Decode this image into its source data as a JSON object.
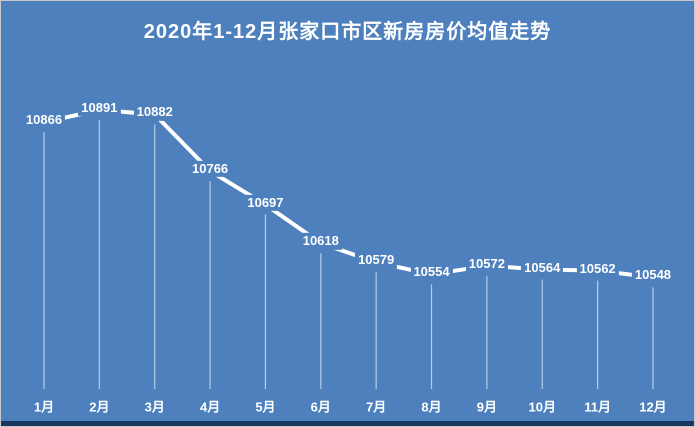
{
  "chart_data": {
    "type": "line",
    "title": "2020年1-12月张家口市区新房房价均值走势",
    "categories": [
      "1月",
      "2月",
      "3月",
      "4月",
      "5月",
      "6月",
      "7月",
      "8月",
      "9月",
      "10月",
      "11月",
      "12月"
    ],
    "values": [
      10866,
      10891,
      10882,
      10766,
      10697,
      10618,
      10579,
      10554,
      10572,
      10564,
      10562,
      10548
    ],
    "xlabel": "",
    "ylabel": "",
    "legend": "none",
    "grid": false,
    "y_axis_visible": false,
    "data_labels_visible": true,
    "drop_lines": true,
    "colors": {
      "background": "#4D80BD",
      "line": "#FFFFFF",
      "label_text": "#FFFFFF",
      "title_text": "#FFFFFF",
      "drop_line": "rgba(255,255,255,0.6)",
      "bottom_bar": "#17375E",
      "frame_border": "#C9C9C9"
    }
  }
}
